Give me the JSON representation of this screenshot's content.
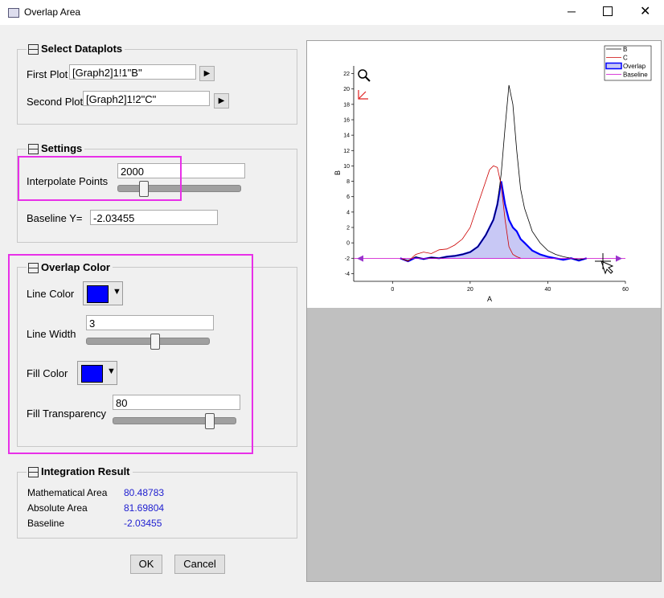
{
  "window": {
    "title": "Overlap Area"
  },
  "select_dataplots": {
    "title": "Select Dataplots",
    "first_plot_label": "First Plot",
    "first_plot": "[Graph2]1!1\"B\"",
    "second_plot_label": "Second Plot",
    "second_plot": "[Graph2]1!2\"C\""
  },
  "settings": {
    "title": "Settings",
    "interpolate_label": "Interpolate Points",
    "interpolate": "2000",
    "baseline_label": "Baseline Y=",
    "baseline": "-2.03455"
  },
  "overlap_color": {
    "title": "Overlap Color",
    "line_color_label": "Line Color",
    "line_width_label": "Line Width",
    "line_width": "3",
    "fill_color_label": "Fill Color",
    "fill_transparency_label": "Fill Transparency",
    "fill_transparency": "80"
  },
  "integration": {
    "title": "Integration Result",
    "rows": [
      [
        "Mathematical Area",
        "80.48783"
      ],
      [
        "Absolute Area",
        "81.69804"
      ],
      [
        "Baseline",
        "-2.03455"
      ]
    ]
  },
  "buttons": {
    "ok": "OK",
    "cancel": "Cancel"
  },
  "chart_data": {
    "type": "line",
    "x_label": "A",
    "y_label": "B",
    "x": [
      2,
      4,
      6,
      8,
      10,
      12,
      14,
      16,
      18,
      20,
      22,
      24,
      25,
      26,
      27,
      28,
      29,
      30,
      31,
      32,
      33,
      34,
      35,
      36,
      38,
      40,
      42,
      44,
      46,
      48,
      50
    ],
    "series": [
      {
        "name": "B",
        "color": "#000000",
        "values": [
          -2,
          -2.3,
          -1.8,
          -2.1,
          -1.9,
          -2,
          -1.8,
          -1.7,
          -1.5,
          -1.2,
          -0.5,
          1,
          2,
          3,
          5,
          9,
          15,
          20.5,
          18,
          12,
          7,
          4.5,
          3,
          1.5,
          0,
          -1,
          -1.5,
          -1.8,
          -2,
          -2.2,
          -2
        ]
      },
      {
        "name": "C",
        "color": "#cc0000",
        "values": [
          -2,
          -2.4,
          -1.5,
          -1.2,
          -1.4,
          -0.9,
          -0.8,
          -0.3,
          0.5,
          2,
          5,
          8,
          9.5,
          10,
          9.8,
          7.5,
          3,
          -0.5,
          -1.5,
          -1.8,
          -2,
          null,
          null,
          null,
          null,
          null,
          null,
          null,
          null,
          null,
          null
        ]
      },
      {
        "name": "Overlap",
        "color": "#0000ff",
        "fill": "#c8c8f5",
        "values": [
          -2,
          -2.4,
          -1.9,
          -2.1,
          -1.9,
          -2,
          -1.8,
          -1.7,
          -1.5,
          -1.2,
          -0.5,
          1,
          2,
          3,
          5,
          8,
          5,
          3,
          2,
          1.5,
          0.5,
          0,
          -0.5,
          -1,
          -1.5,
          -1.8,
          -2,
          -2.2,
          -2,
          -2.3,
          -2
        ]
      },
      {
        "name": "Baseline",
        "color": "#cc00cc",
        "x": [
          -10,
          60
        ],
        "values": [
          -2.03455,
          -2.03455
        ]
      }
    ],
    "xlim": [
      -10,
      60
    ],
    "ylim": [
      -5,
      23
    ],
    "xticks": [
      0,
      20,
      40,
      60
    ],
    "yticks": [
      -4,
      -2,
      0,
      2,
      4,
      6,
      8,
      10,
      12,
      14,
      16,
      18,
      20,
      22
    ]
  }
}
